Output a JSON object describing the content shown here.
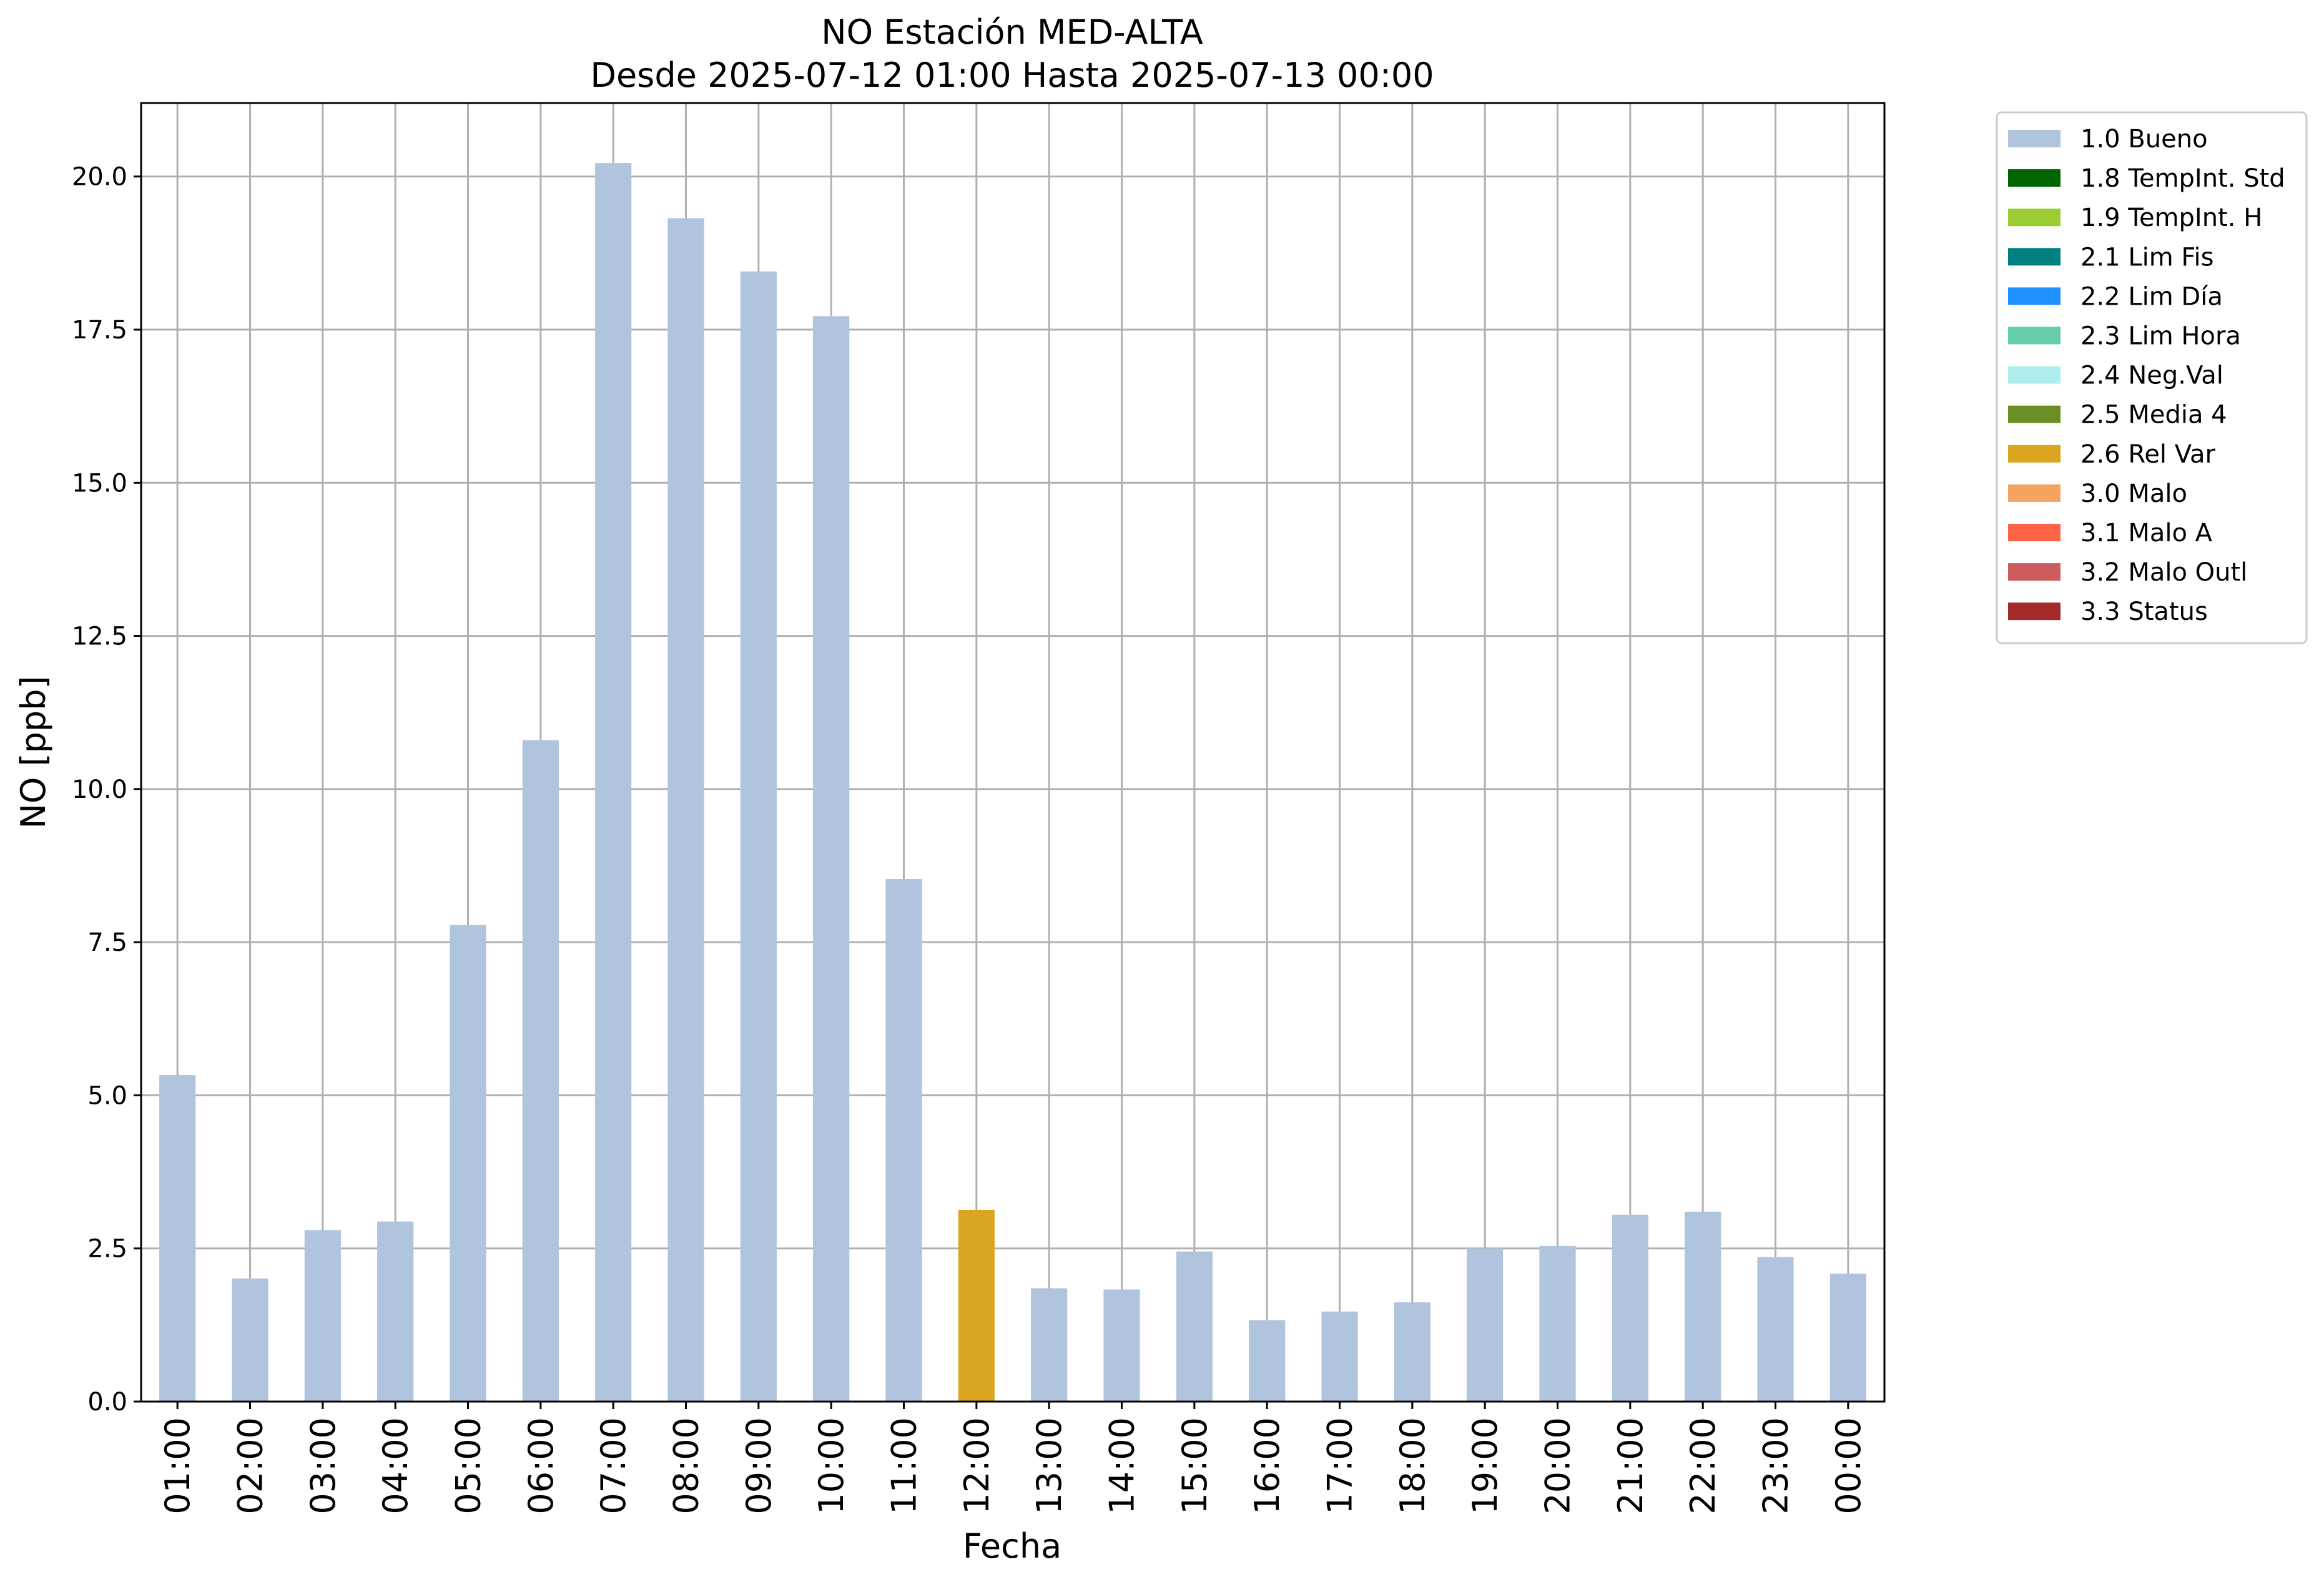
{
  "chart_data": {
    "type": "bar",
    "title": "NO Estación MED-ALTA",
    "subtitle": "Desde 2025-07-12 01:00 Hasta 2025-07-13 00:00",
    "xlabel": "Fecha",
    "ylabel": "NO [ppb]",
    "ylim": [
      0,
      21.2
    ],
    "yticks": [
      "0.0",
      "2.5",
      "5.0",
      "7.5",
      "10.0",
      "12.5",
      "15.0",
      "17.5",
      "20.0"
    ],
    "grid": true,
    "legend_position": "outside-top-right",
    "categories": [
      "01:00",
      "02:00",
      "03:00",
      "04:00",
      "05:00",
      "06:00",
      "07:00",
      "08:00",
      "09:00",
      "10:00",
      "11:00",
      "12:00",
      "13:00",
      "14:00",
      "15:00",
      "16:00",
      "17:00",
      "18:00",
      "19:00",
      "20:00",
      "21:00",
      "22:00",
      "23:00",
      "00:00"
    ],
    "values": [
      5.33,
      2.01,
      2.8,
      2.94,
      7.78,
      10.8,
      20.22,
      19.32,
      18.45,
      17.72,
      8.53,
      3.13,
      1.85,
      1.83,
      2.45,
      1.33,
      1.47,
      1.62,
      2.5,
      2.54,
      3.05,
      3.1,
      2.36,
      2.09
    ],
    "flags": [
      "1.0 Bueno",
      "1.0 Bueno",
      "1.0 Bueno",
      "1.0 Bueno",
      "1.0 Bueno",
      "1.0 Bueno",
      "1.0 Bueno",
      "1.0 Bueno",
      "1.0 Bueno",
      "1.0 Bueno",
      "1.0 Bueno",
      "2.6 Rel Var",
      "1.0 Bueno",
      "1.0 Bueno",
      "1.0 Bueno",
      "1.0 Bueno",
      "1.0 Bueno",
      "1.0 Bueno",
      "1.0 Bueno",
      "1.0 Bueno",
      "1.0 Bueno",
      "1.0 Bueno",
      "1.0 Bueno",
      "1.0 Bueno"
    ],
    "legend": [
      {
        "label": "1.0 Bueno",
        "color": "#b0c4de"
      },
      {
        "label": "1.8 TempInt. Std",
        "color": "#006400"
      },
      {
        "label": "1.9 TempInt. H",
        "color": "#9acd32"
      },
      {
        "label": "2.1 Lim Fis",
        "color": "#008080"
      },
      {
        "label": "2.2 Lim Día",
        "color": "#1e90ff"
      },
      {
        "label": "2.3 Lim Hora",
        "color": "#66cdaa"
      },
      {
        "label": "2.4 Neg.Val",
        "color": "#afeeee"
      },
      {
        "label": "2.5 Media 4",
        "color": "#6b8e23"
      },
      {
        "label": "2.6 Rel Var",
        "color": "#daa520"
      },
      {
        "label": "3.0 Malo",
        "color": "#f4a460"
      },
      {
        "label": "3.1 Malo A",
        "color": "#ff6347"
      },
      {
        "label": "3.2 Malo Outl",
        "color": "#cd5c5c"
      },
      {
        "label": "3.3 Status",
        "color": "#a52a2a"
      }
    ]
  }
}
